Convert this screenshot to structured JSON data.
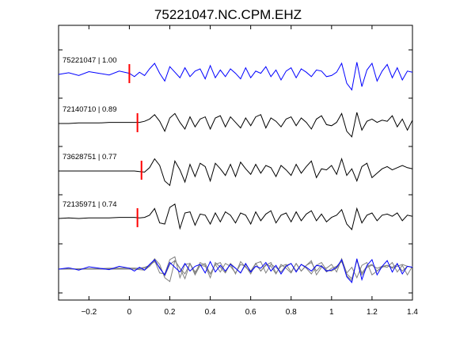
{
  "chart_data": {
    "type": "line",
    "title": "75221047.NC.CPM.EHZ",
    "xlabel": "",
    "ylabel": "",
    "xlim": [
      -0.35,
      1.4
    ],
    "xticks": [
      -0.2,
      0,
      0.2,
      0.4,
      0.6,
      0.8,
      1,
      1.2,
      1.4
    ],
    "xtick_labels": [
      "−0.2",
      "0",
      "0.2",
      "0.4",
      "0.6",
      "0.8",
      "1",
      "1.2",
      "1.4"
    ],
    "grid": false,
    "colors": {
      "reference": "#0000ff",
      "match": "#000000",
      "stack": "#808080",
      "pick": "#ff0000"
    },
    "series": [
      {
        "label": "75221047 | 1.00",
        "color": "#0000ff",
        "pick_time": 0.0,
        "x": [
          -0.35,
          -0.3,
          -0.25,
          -0.2,
          -0.15,
          -0.1,
          -0.05,
          0,
          0.025,
          0.05,
          0.075,
          0.1,
          0.125,
          0.15,
          0.175,
          0.2,
          0.225,
          0.25,
          0.275,
          0.3,
          0.325,
          0.35,
          0.375,
          0.4,
          0.425,
          0.45,
          0.475,
          0.5,
          0.525,
          0.55,
          0.575,
          0.6,
          0.625,
          0.65,
          0.675,
          0.7,
          0.725,
          0.75,
          0.775,
          0.8,
          0.825,
          0.85,
          0.875,
          0.9,
          0.925,
          0.95,
          0.975,
          1,
          1.025,
          1.05,
          1.075,
          1.1,
          1.125,
          1.15,
          1.175,
          1.2,
          1.225,
          1.25,
          1.275,
          1.3,
          1.325,
          1.35,
          1.375,
          1.4
        ],
        "y": [
          0,
          0.15,
          -0.1,
          0.25,
          0.1,
          -0.05,
          0.3,
          0.1,
          -0.2,
          0.2,
          -0.1,
          0.5,
          1.0,
          0.1,
          -0.6,
          0.7,
          0.2,
          -0.3,
          0.6,
          -0.2,
          0.3,
          0.5,
          -0.4,
          0.8,
          -0.3,
          0.4,
          -0.2,
          0.5,
          0.1,
          -0.4,
          0.6,
          -0.3,
          0.3,
          0.1,
          0.7,
          -0.2,
          0.4,
          -0.5,
          0.3,
          0.6,
          -0.3,
          0.5,
          0.2,
          -0.2,
          0.4,
          0.3,
          -0.2,
          -0.1,
          0.2,
          1.0,
          -0.8,
          -1.4,
          1.1,
          -1.1,
          0.4,
          1.0,
          -0.6,
          0.3,
          0.9,
          -0.3,
          0.6,
          -0.5,
          0.3,
          0.2
        ]
      },
      {
        "label": "72140710 | 0.89",
        "color": "#000000",
        "pick_time": 0.04,
        "x": [
          -0.35,
          -0.3,
          -0.25,
          -0.2,
          -0.15,
          -0.1,
          -0.05,
          0,
          0.025,
          0.05,
          0.075,
          0.1,
          0.125,
          0.15,
          0.175,
          0.2,
          0.225,
          0.25,
          0.275,
          0.3,
          0.325,
          0.35,
          0.375,
          0.4,
          0.425,
          0.45,
          0.475,
          0.5,
          0.525,
          0.55,
          0.575,
          0.6,
          0.625,
          0.65,
          0.675,
          0.7,
          0.725,
          0.75,
          0.775,
          0.8,
          0.825,
          0.85,
          0.875,
          0.9,
          0.925,
          0.95,
          0.975,
          1,
          1.025,
          1.05,
          1.075,
          1.1,
          1.125,
          1.15,
          1.175,
          1.2,
          1.225,
          1.25,
          1.275,
          1.3,
          1.325,
          1.35,
          1.375,
          1.4
        ],
        "y": [
          0,
          0,
          0.05,
          0.05,
          0.05,
          0.1,
          0.1,
          0.1,
          0.1,
          0.1,
          0.2,
          0.4,
          0.8,
          0.2,
          -0.7,
          0.5,
          0.9,
          0.1,
          -0.5,
          0.6,
          -0.3,
          0.4,
          0.6,
          -0.5,
          0.5,
          0.7,
          -0.3,
          0.6,
          0.1,
          -0.4,
          0.5,
          -0.2,
          0.6,
          0.8,
          -0.4,
          0.5,
          0.2,
          -0.3,
          0.4,
          0.6,
          -0.2,
          0.5,
          0.1,
          -0.5,
          0.4,
          0.7,
          -0.1,
          -0.2,
          0.1,
          0.9,
          -0.7,
          -1.2,
          1.0,
          -0.6,
          0.2,
          0.4,
          0.1,
          0.3,
          0.2,
          0.7,
          -0.3,
          0.4,
          -0.6,
          0.3
        ]
      },
      {
        "label": "73628751 | 0.77",
        "color": "#000000",
        "pick_time": 0.06,
        "x": [
          -0.35,
          -0.3,
          -0.25,
          -0.2,
          -0.15,
          -0.1,
          -0.05,
          0,
          0.025,
          0.05,
          0.075,
          0.1,
          0.125,
          0.15,
          0.175,
          0.2,
          0.225,
          0.25,
          0.275,
          0.3,
          0.325,
          0.35,
          0.375,
          0.4,
          0.425,
          0.45,
          0.475,
          0.5,
          0.525,
          0.55,
          0.575,
          0.6,
          0.625,
          0.65,
          0.675,
          0.7,
          0.725,
          0.75,
          0.775,
          0.8,
          0.825,
          0.85,
          0.875,
          0.9,
          0.925,
          0.95,
          0.975,
          1,
          1.025,
          1.05,
          1.075,
          1.1,
          1.125,
          1.15,
          1.175,
          1.2,
          1.225,
          1.25,
          1.275,
          1.3,
          1.325,
          1.35,
          1.375,
          1.4
        ],
        "y": [
          0,
          0,
          0,
          0,
          0,
          0,
          0,
          0,
          0,
          -0.05,
          -0.1,
          0.3,
          1.1,
          0.5,
          -0.9,
          -1.3,
          0.9,
          0.1,
          -1.0,
          0.6,
          -0.5,
          0.7,
          0.4,
          -0.9,
          0.7,
          0.2,
          -0.4,
          0.6,
          -0.5,
          0.8,
          0.2,
          -0.3,
          0.6,
          -0.2,
          0.5,
          0.3,
          -0.5,
          0.5,
          0.1,
          -0.4,
          0.6,
          -0.2,
          0.4,
          0.9,
          -0.6,
          0.2,
          0.1,
          0.5,
          -0.3,
          1.1,
          -0.4,
          0.2,
          -0.9,
          0.4,
          0.7,
          -0.6,
          -0.2,
          0.2,
          0.4,
          0.1,
          0.3,
          0.5,
          0.3,
          0.2
        ]
      },
      {
        "label": "72135971 | 0.74",
        "color": "#000000",
        "pick_time": 0.04,
        "x": [
          -0.35,
          -0.3,
          -0.25,
          -0.2,
          -0.15,
          -0.1,
          -0.05,
          0,
          0.025,
          0.05,
          0.075,
          0.1,
          0.125,
          0.15,
          0.175,
          0.2,
          0.225,
          0.25,
          0.275,
          0.3,
          0.325,
          0.35,
          0.375,
          0.4,
          0.425,
          0.45,
          0.475,
          0.5,
          0.525,
          0.55,
          0.575,
          0.6,
          0.625,
          0.65,
          0.675,
          0.7,
          0.725,
          0.75,
          0.775,
          0.8,
          0.825,
          0.85,
          0.875,
          0.9,
          0.925,
          0.95,
          0.975,
          1,
          1.025,
          1.05,
          1.075,
          1.1,
          1.125,
          1.15,
          1.175,
          1.2,
          1.225,
          1.25,
          1.275,
          1.3,
          1.325,
          1.35,
          1.375,
          1.4
        ],
        "y": [
          0,
          0.05,
          0,
          0.05,
          0.05,
          0.05,
          0.1,
          0.1,
          0.1,
          0.05,
          0.1,
          0.3,
          0.9,
          -0.4,
          -0.5,
          1.0,
          1.3,
          -0.9,
          0.5,
          0.6,
          -0.6,
          0.4,
          0.3,
          -0.5,
          0.5,
          -0.3,
          0.6,
          0.3,
          -0.4,
          0.5,
          0.3,
          -0.5,
          0.6,
          -0.2,
          0.4,
          0.7,
          -0.4,
          0.3,
          0.5,
          -0.3,
          0.6,
          -0.2,
          0.4,
          0.7,
          -0.2,
          0.4,
          -0.3,
          0.1,
          0.3,
          0.8,
          -0.5,
          -1.0,
          0.9,
          -0.4,
          0.3,
          0.5,
          -0.2,
          0.3,
          0.4,
          0.2,
          0.5,
          -0.2,
          0.3,
          0.2
        ]
      }
    ],
    "stack": {
      "description_series": "overlay of all traces at bottom",
      "x": [
        -0.35,
        -0.3,
        -0.25,
        -0.2,
        -0.15,
        -0.1,
        -0.05,
        0,
        0.025,
        0.05,
        0.075,
        0.1,
        0.125,
        0.15,
        0.175,
        0.2,
        0.225,
        0.25,
        0.275,
        0.3,
        0.325,
        0.35,
        0.375,
        0.4,
        0.425,
        0.45,
        0.475,
        0.5,
        0.525,
        0.55,
        0.575,
        0.6,
        0.625,
        0.65,
        0.675,
        0.7,
        0.725,
        0.75,
        0.775,
        0.8,
        0.825,
        0.85,
        0.875,
        0.9,
        0.925,
        0.95,
        0.975,
        1,
        1.025,
        1.05,
        1.075,
        1.1,
        1.125,
        1.15,
        1.175,
        1.2,
        1.225,
        1.25,
        1.275,
        1.3,
        1.325,
        1.35,
        1.375,
        1.4
      ],
      "y_reference": [
        0,
        0.15,
        -0.1,
        0.25,
        0.1,
        -0.05,
        0.3,
        0.1,
        -0.2,
        0.2,
        -0.1,
        0.5,
        1.0,
        0.1,
        -0.6,
        0.7,
        0.2,
        -0.3,
        0.6,
        -0.2,
        0.3,
        0.5,
        -0.4,
        0.8,
        -0.3,
        0.4,
        -0.2,
        0.5,
        0.1,
        -0.4,
        0.6,
        -0.3,
        0.3,
        0.1,
        0.7,
        -0.2,
        0.4,
        -0.5,
        0.3,
        0.6,
        -0.3,
        0.5,
        0.2,
        -0.2,
        0.4,
        0.3,
        -0.2,
        -0.1,
        0.2,
        1.0,
        -0.8,
        -1.4,
        1.1,
        -1.1,
        0.4,
        1.0,
        -0.6,
        0.3,
        0.9,
        -0.3,
        0.6,
        -0.5,
        0.3,
        0.2
      ],
      "y_others": [
        [
          0,
          0,
          0.05,
          0.05,
          0.05,
          0.1,
          0.1,
          0.1,
          0.1,
          0.1,
          0.2,
          0.4,
          0.8,
          0.2,
          -0.7,
          0.5,
          0.9,
          0.1,
          -0.5,
          0.6,
          -0.3,
          0.4,
          0.6,
          -0.5,
          0.5,
          0.7,
          -0.3,
          0.6,
          0.1,
          -0.4,
          0.5,
          -0.2,
          0.6,
          0.8,
          -0.4,
          0.5,
          0.2,
          -0.3,
          0.4,
          0.6,
          -0.2,
          0.5,
          0.1,
          -0.5,
          0.4,
          0.7,
          -0.1,
          -0.2,
          0.1,
          0.9,
          -0.7,
          -1.2,
          1.0,
          -0.6,
          0.2,
          0.4,
          0.1,
          0.3,
          0.2,
          0.7,
          -0.3,
          0.4,
          -0.6,
          0.3
        ],
        [
          0,
          0,
          0,
          0,
          0,
          0,
          0,
          0,
          0,
          -0.05,
          -0.1,
          0.3,
          1.1,
          0.5,
          -0.9,
          -1.3,
          0.9,
          0.1,
          -1.0,
          0.6,
          -0.5,
          0.7,
          0.4,
          -0.9,
          0.7,
          0.2,
          -0.4,
          0.6,
          -0.5,
          0.8,
          0.2,
          -0.3,
          0.6,
          -0.2,
          0.5,
          0.3,
          -0.5,
          0.5,
          0.1,
          -0.4,
          0.6,
          -0.2,
          0.4,
          0.9,
          -0.6,
          0.2,
          0.1,
          0.5,
          -0.3,
          1.1,
          -0.4,
          0.2,
          -0.9,
          0.4,
          0.7,
          -0.6,
          -0.2,
          0.2,
          0.4,
          0.1,
          0.3,
          0.5,
          0.3,
          0.2
        ],
        [
          0,
          0.05,
          0,
          0.05,
          0.05,
          0.05,
          0.1,
          0.1,
          0.1,
          0.05,
          0.1,
          0.3,
          0.9,
          -0.4,
          -0.5,
          1.0,
          1.3,
          -0.9,
          0.5,
          0.6,
          -0.6,
          0.4,
          0.3,
          -0.5,
          0.5,
          -0.3,
          0.6,
          0.3,
          -0.4,
          0.5,
          0.3,
          -0.5,
          0.6,
          -0.2,
          0.4,
          0.7,
          -0.4,
          0.3,
          0.5,
          -0.3,
          0.6,
          -0.2,
          0.4,
          0.7,
          -0.2,
          0.4,
          -0.3,
          0.1,
          0.3,
          0.8,
          -0.5,
          -1.0,
          0.9,
          -0.4,
          0.3,
          0.5,
          -0.2,
          0.3,
          0.4,
          0.2,
          0.5,
          -0.2,
          0.3,
          0.2
        ]
      ]
    }
  }
}
